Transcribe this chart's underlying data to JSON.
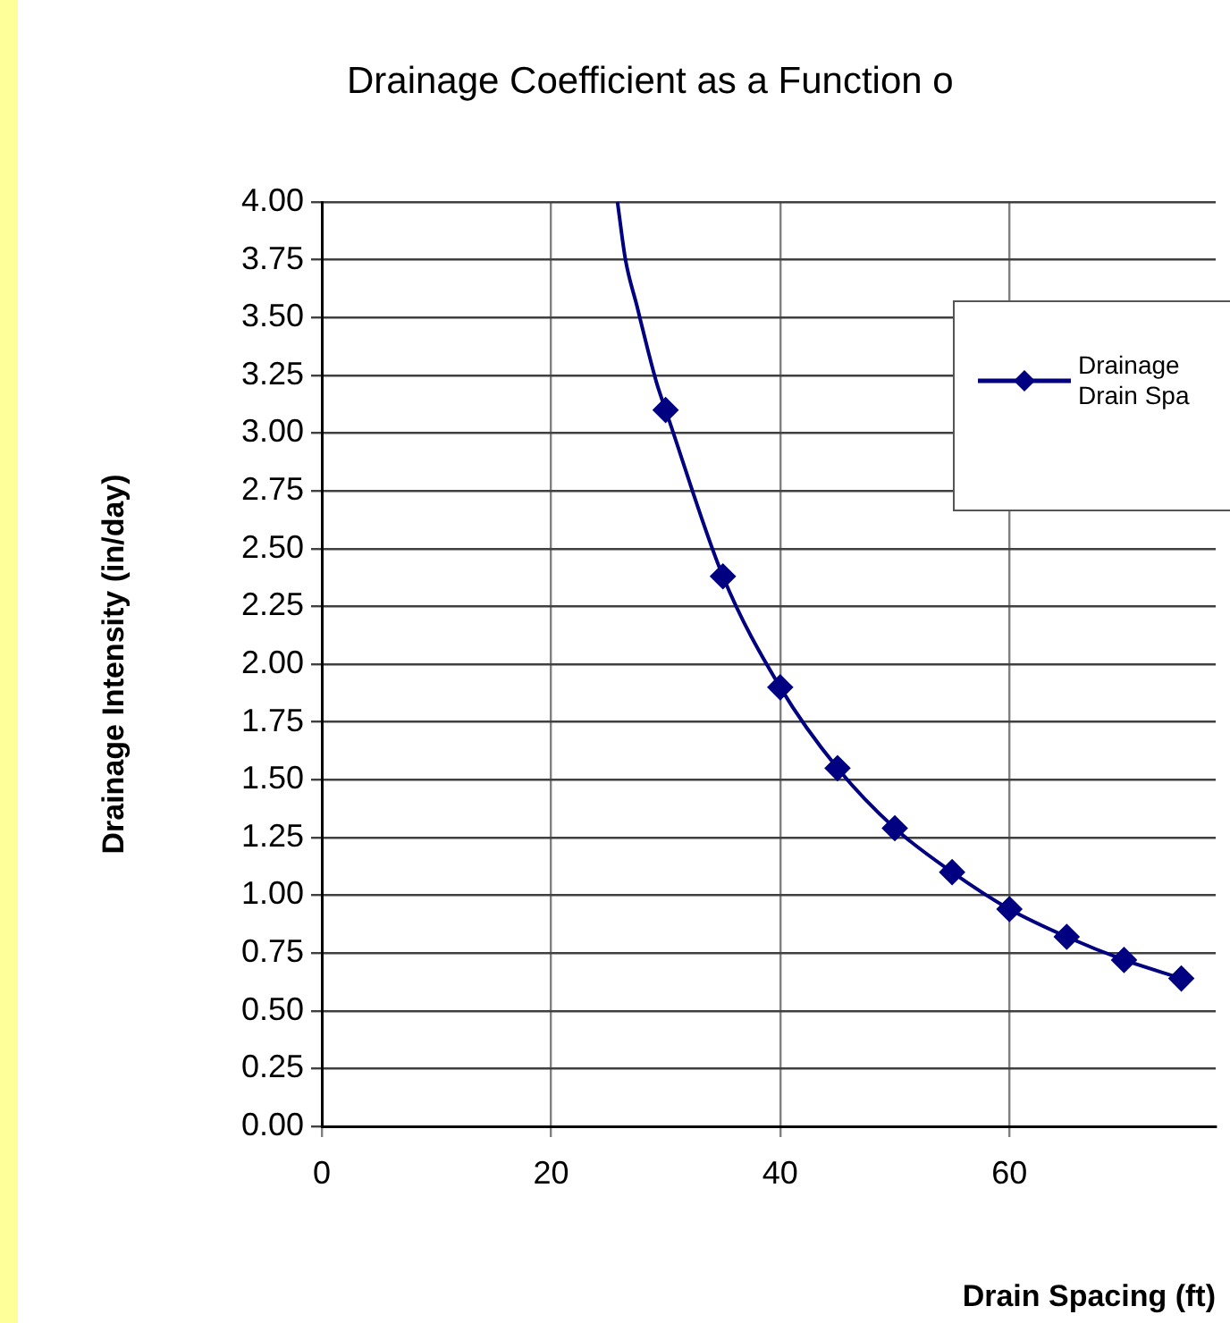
{
  "chart_data": {
    "type": "line",
    "title": "Drainage Coefficient as a Function o",
    "xlabel": "Drain Spacing (ft)",
    "ylabel": "Drainage Intensity (in/day)",
    "series": [
      {
        "name": "Drainage Drain Spa",
        "color": "#000080",
        "marker": "diamond",
        "x": [
          30,
          35,
          40,
          45,
          50,
          55,
          60,
          65,
          70,
          75
        ],
        "values": [
          3.1,
          2.38,
          1.9,
          1.55,
          1.29,
          1.1,
          0.94,
          0.82,
          0.72,
          0.64
        ]
      },
      {
        "type": "line",
        "color": "#000080",
        "marker": "none",
        "x": [
          25.8,
          26.5,
          27.5,
          28.5,
          29.2,
          30
        ],
        "values": [
          4.0,
          3.75,
          3.55,
          3.35,
          3.22,
          3.1
        ]
      }
    ],
    "xlim": [
      0,
      78
    ],
    "xticks": [
      0,
      20,
      40,
      60
    ],
    "ylim": [
      0,
      4
    ],
    "yticks": [
      {
        "value": 0,
        "label": "0.00"
      },
      {
        "value": 0.25,
        "label": "0.25"
      },
      {
        "value": 0.5,
        "label": "0.50"
      },
      {
        "value": 0.75,
        "label": "0.75"
      },
      {
        "value": 1,
        "label": "1.00"
      },
      {
        "value": 1.25,
        "label": "1.25"
      },
      {
        "value": 1.5,
        "label": "1.50"
      },
      {
        "value": 1.75,
        "label": "1.75"
      },
      {
        "value": 2,
        "label": "2.00"
      },
      {
        "value": 2.25,
        "label": "2.25"
      },
      {
        "value": 2.5,
        "label": "2.50"
      },
      {
        "value": 2.75,
        "label": "2.75"
      },
      {
        "value": 3,
        "label": "3.00"
      },
      {
        "value": 3.25,
        "label": "3.25"
      },
      {
        "value": 3.5,
        "label": "3.50"
      },
      {
        "value": 3.75,
        "label": "3.75"
      },
      {
        "value": 4,
        "label": "4.00"
      }
    ],
    "grid": true,
    "legend": "right"
  }
}
